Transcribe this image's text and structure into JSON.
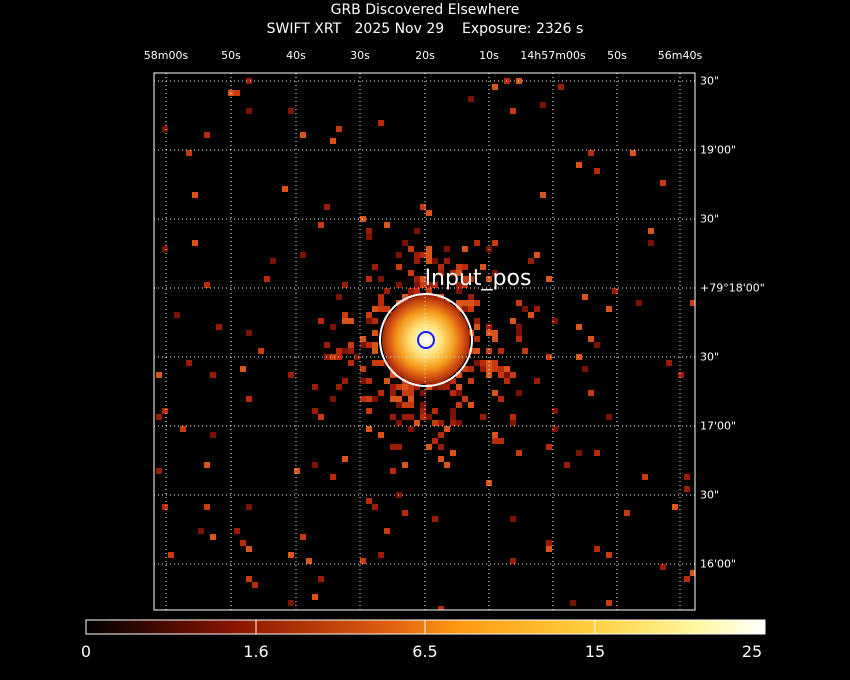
{
  "header": {
    "title": "GRB Discovered Elsewhere",
    "subtitle": "SWIFT XRT   2025 Nov 29    Exposure: 2326 s"
  },
  "axes": {
    "ra_ticks": [
      "58m00s",
      "50s",
      "40s",
      "30s",
      "20s",
      "10s",
      "14h57m00s",
      "50s",
      "56m40s"
    ],
    "dec_ticks": [
      "30\"",
      "19'00\"",
      "30\"",
      "+79°18'00\"",
      "30\"",
      "17'00\"",
      "30\"",
      "16'00\""
    ]
  },
  "source": {
    "label": "Input_pos"
  },
  "colorbar": {
    "ticks": [
      "0",
      "1.6",
      "6.5",
      "15",
      "25"
    ]
  },
  "colors": {
    "background": "#000000",
    "grid": "#ffffff",
    "circle_outer": "#ffffff",
    "circle_inner": "#1020ff",
    "low": "#c83010",
    "high": "#ffffff"
  }
}
